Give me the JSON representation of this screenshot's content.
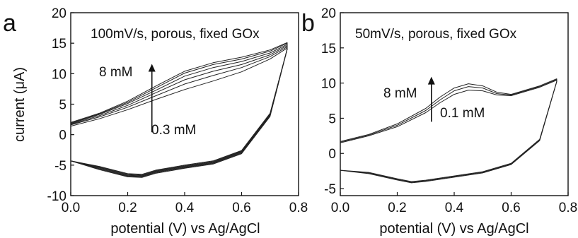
{
  "chart_data": [
    {
      "type": "line",
      "panel_label": "a",
      "title": "100mV/s, porous, fixed GOx",
      "xlabel": "potential (V) vs Ag/AgCl",
      "ylabel": "current (μA)",
      "xlim": [
        0.0,
        0.8
      ],
      "ylim": [
        -10,
        20
      ],
      "xticks": [
        "0.0",
        "0.2",
        "0.4",
        "0.6",
        "0.8"
      ],
      "yticks": [
        "-10",
        "-5",
        "0",
        "5",
        "10",
        "15",
        "20"
      ],
      "grid": false,
      "annotations": {
        "upper": "8 mM",
        "lower": "0.3 mM",
        "arrow": {
          "x": 0.285,
          "y_from": 0.4,
          "y_to": 11.6
        }
      },
      "series": [
        {
          "x": [
            0.0,
            0.1,
            0.2,
            0.3,
            0.4,
            0.5,
            0.6,
            0.7,
            0.76
          ],
          "values": [
            1.4,
            2.6,
            4.1,
            5.8,
            7.4,
            8.8,
            10.3,
            12.4,
            14.2
          ]
        },
        {
          "x": [
            0.0,
            0.1,
            0.2,
            0.3,
            0.4,
            0.5,
            0.6,
            0.7,
            0.76
          ],
          "values": [
            1.6,
            2.9,
            4.5,
            6.4,
            8.3,
            9.7,
            11.0,
            12.8,
            14.4
          ]
        },
        {
          "x": [
            0.0,
            0.1,
            0.2,
            0.3,
            0.4,
            0.5,
            0.6,
            0.7,
            0.76
          ],
          "values": [
            1.7,
            3.1,
            4.8,
            6.9,
            9.0,
            10.4,
            11.5,
            13.1,
            14.6
          ]
        },
        {
          "x": [
            0.0,
            0.1,
            0.2,
            0.3,
            0.4,
            0.5,
            0.6,
            0.7,
            0.76
          ],
          "values": [
            1.8,
            3.3,
            5.1,
            7.3,
            9.6,
            11.0,
            12.0,
            13.4,
            14.8
          ]
        },
        {
          "x": [
            0.0,
            0.1,
            0.2,
            0.3,
            0.4,
            0.5,
            0.6,
            0.7,
            0.76
          ],
          "values": [
            1.9,
            3.4,
            5.3,
            7.7,
            10.1,
            11.5,
            12.4,
            13.7,
            15.0
          ]
        },
        {
          "x": [
            0.0,
            0.1,
            0.2,
            0.3,
            0.4,
            0.5,
            0.6,
            0.7,
            0.76
          ],
          "values": [
            2.0,
            3.5,
            5.5,
            8.0,
            10.4,
            11.8,
            12.7,
            13.9,
            15.1
          ]
        }
      ],
      "return_sweep": {
        "x": [
          0.76,
          0.7,
          0.6,
          0.5,
          0.4,
          0.3,
          0.25,
          0.2,
          0.1,
          0.0
        ],
        "values": [
          14.0,
          3.5,
          -2.6,
          -4.3,
          -5.0,
          -5.8,
          -6.5,
          -6.4,
          -5.2,
          -4.3
        ]
      }
    },
    {
      "type": "line",
      "panel_label": "b",
      "title": "50mV/s, porous, fixed GOx",
      "xlabel": "potential (V) vs Ag/AgCl",
      "ylabel": "",
      "xlim": [
        0.0,
        0.8
      ],
      "ylim": [
        -6,
        20
      ],
      "xticks": [
        "0.0",
        "0.2",
        "0.4",
        "0.6",
        "0.8"
      ],
      "yticks": [
        "-5",
        "0",
        "5",
        "10",
        "15",
        "20"
      ],
      "grid": false,
      "annotations": {
        "upper": "8 mM",
        "lower": "0.1 mM",
        "arrow": {
          "x": 0.32,
          "y_from": 4.5,
          "y_to": 10.9
        }
      },
      "series": [
        {
          "x": [
            0.0,
            0.1,
            0.2,
            0.3,
            0.35,
            0.4,
            0.45,
            0.5,
            0.55,
            0.6,
            0.7,
            0.76
          ],
          "values": [
            1.5,
            2.5,
            3.8,
            5.8,
            7.2,
            8.4,
            9.0,
            8.9,
            8.3,
            8.2,
            9.4,
            10.4
          ]
        },
        {
          "x": [
            0.0,
            0.1,
            0.2,
            0.3,
            0.35,
            0.4,
            0.45,
            0.5,
            0.55,
            0.6,
            0.7,
            0.76
          ],
          "values": [
            1.6,
            2.6,
            4.0,
            6.1,
            7.6,
            8.9,
            9.5,
            9.3,
            8.5,
            8.3,
            9.5,
            10.5
          ]
        },
        {
          "x": [
            0.0,
            0.1,
            0.2,
            0.3,
            0.35,
            0.4,
            0.45,
            0.5,
            0.55,
            0.6,
            0.7,
            0.76
          ],
          "values": [
            1.7,
            2.7,
            4.2,
            6.4,
            8.0,
            9.3,
            9.9,
            9.6,
            8.7,
            8.4,
            9.6,
            10.6
          ]
        }
      ],
      "return_sweep": {
        "x": [
          0.76,
          0.7,
          0.6,
          0.5,
          0.4,
          0.3,
          0.25,
          0.2,
          0.1,
          0.0
        ],
        "values": [
          10.2,
          2.0,
          -1.4,
          -2.6,
          -3.2,
          -3.8,
          -4.0,
          -3.6,
          -2.7,
          -2.4
        ]
      }
    }
  ]
}
